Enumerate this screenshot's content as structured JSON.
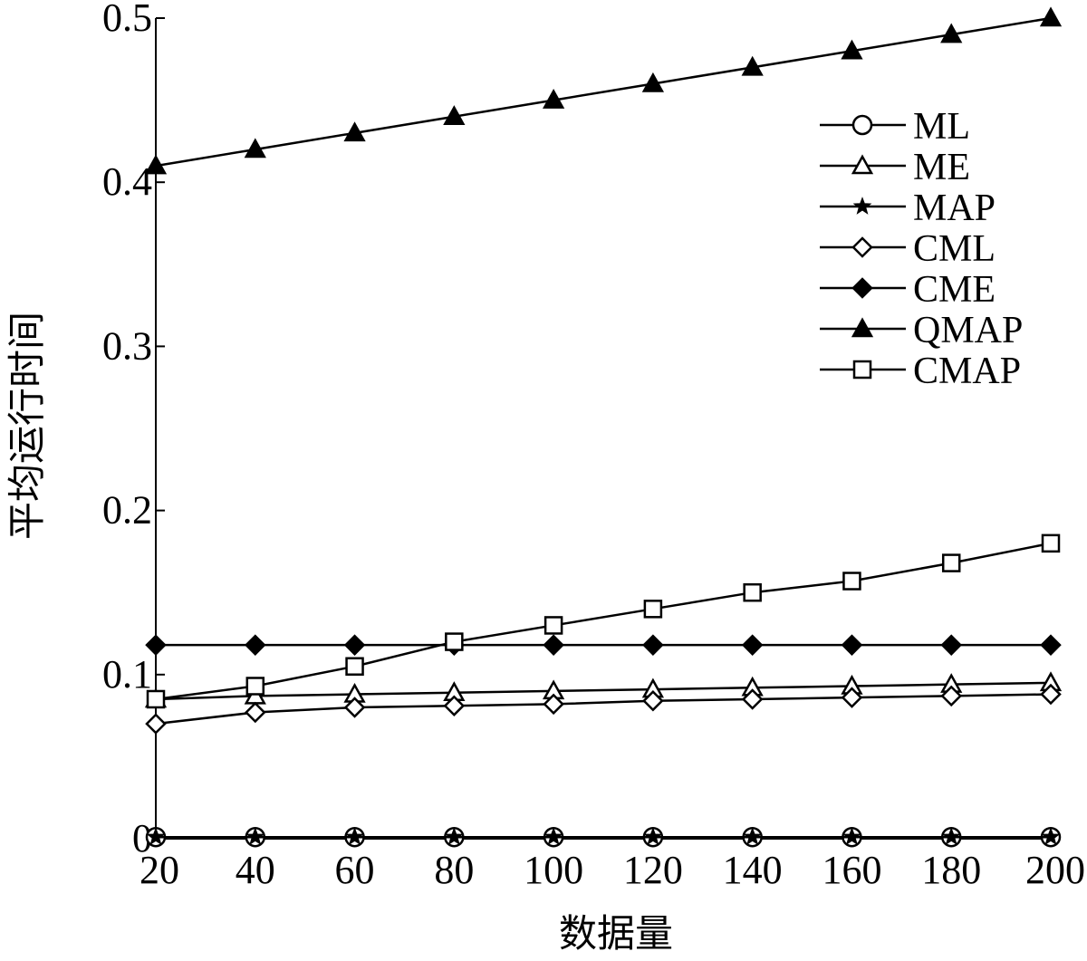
{
  "chart_data": {
    "type": "line",
    "title": "",
    "xlabel": "数据量",
    "ylabel": "平均运行时间",
    "x": [
      20,
      40,
      60,
      80,
      100,
      120,
      140,
      160,
      180,
      200
    ],
    "xlim": [
      20,
      200
    ],
    "ylim": [
      0,
      0.5
    ],
    "xticks": [
      "20",
      "40",
      "60",
      "80",
      "100",
      "120",
      "140",
      "160",
      "180",
      "200"
    ],
    "yticks": [
      "0",
      "0.1",
      "0.2",
      "0.3",
      "0.4",
      "0.5"
    ],
    "grid": false,
    "legend_position": "top-right",
    "series": [
      {
        "name": "ML",
        "marker": "circle",
        "values": [
          0.001,
          0.001,
          0.001,
          0.001,
          0.001,
          0.001,
          0.001,
          0.001,
          0.001,
          0.001
        ]
      },
      {
        "name": "ME",
        "marker": "triangle-open",
        "values": [
          0.085,
          0.087,
          0.088,
          0.089,
          0.09,
          0.091,
          0.092,
          0.093,
          0.094,
          0.095
        ]
      },
      {
        "name": "MAP",
        "marker": "star",
        "values": [
          0.001,
          0.001,
          0.001,
          0.001,
          0.001,
          0.001,
          0.001,
          0.001,
          0.001,
          0.001
        ]
      },
      {
        "name": "CML",
        "marker": "diamond-open",
        "values": [
          0.07,
          0.077,
          0.08,
          0.081,
          0.082,
          0.084,
          0.085,
          0.086,
          0.087,
          0.088
        ]
      },
      {
        "name": "CME",
        "marker": "diamond-filled",
        "values": [
          0.118,
          0.118,
          0.118,
          0.118,
          0.118,
          0.118,
          0.118,
          0.118,
          0.118,
          0.118
        ]
      },
      {
        "name": "QMAP",
        "marker": "triangle-filled",
        "values": [
          0.41,
          0.42,
          0.43,
          0.44,
          0.45,
          0.46,
          0.47,
          0.48,
          0.49,
          0.5
        ]
      },
      {
        "name": "CMAP",
        "marker": "square-open",
        "values": [
          0.085,
          0.093,
          0.105,
          0.12,
          0.13,
          0.14,
          0.15,
          0.157,
          0.168,
          0.18
        ]
      }
    ]
  }
}
